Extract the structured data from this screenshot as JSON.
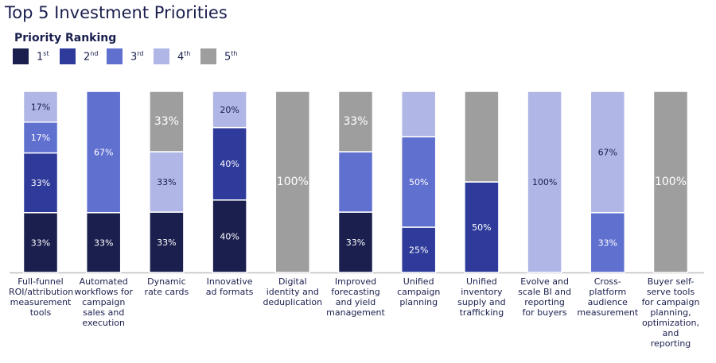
{
  "chart_data": {
    "type": "bar",
    "stacked": true,
    "title": "Top 5 Investment Priorities",
    "legend_title": "Priority Ranking",
    "legend_placement": "top-left",
    "ylim": [
      0,
      100
    ],
    "grid": false,
    "categories": [
      "Full-funnel ROI/attribution measurement tools",
      "Automated workflows for campaign sales and execution",
      "Dynamic rate cards",
      "Innovative ad formats",
      "Digital identity and deduplication",
      "Improved forecasting and yield management",
      "Unified campaign planning",
      "Unified inventory supply and trafficking",
      "Evolve and scale BI and reporting for buyers",
      "Cross-platform audience measurement",
      "Buyer self-serve tools for campaign planning, optimization, and reporting"
    ],
    "category_lines": [
      "Full-funnel\nROI/attribution\nmeasurement\ntools",
      "Automated\nworkflows for\ncampaign\nsales and\nexecution",
      "Dynamic\nrate cards",
      "Innovative\nad formats",
      "Digital\nidentity and\ndeduplication",
      "Improved\nforecasting\nand yield\nmanagement",
      "Unified\ncampaign\nplanning",
      "Unified\ninventory\nsupply and\ntrafficking",
      "Evolve and\nscale BI and\nreporting\nfor buyers",
      "Cross-platform\naudience\nmeasurement",
      "Buyer self-\nserve tools\nfor campaign\nplanning,\noptimization,\nand\nreporting"
    ],
    "series": [
      {
        "name": "1st",
        "base": "1",
        "suffix": "st",
        "color": "#1a1f4e",
        "label_color": "#ffffff",
        "values": [
          33,
          33,
          33,
          40,
          0,
          33,
          0,
          0,
          0,
          0,
          0
        ],
        "labels": [
          "33%",
          "33%",
          "33%",
          "40%",
          null,
          "33%",
          null,
          null,
          null,
          null,
          null
        ]
      },
      {
        "name": "2nd",
        "base": "2",
        "suffix": "nd",
        "color": "#2e3b9a",
        "label_color": "#ffffff",
        "values": [
          33,
          0,
          0,
          40,
          0,
          0,
          25,
          50,
          0,
          0,
          0
        ],
        "labels": [
          "33%",
          null,
          null,
          "40%",
          null,
          null,
          "25%",
          "50%",
          null,
          null,
          null
        ]
      },
      {
        "name": "3rd",
        "base": "3",
        "suffix": "rd",
        "color": "#6070cf",
        "label_color": "#ffffff",
        "values": [
          17,
          67,
          0,
          0,
          0,
          33,
          50,
          0,
          0,
          33,
          0
        ],
        "labels": [
          "17%",
          "67%",
          null,
          null,
          null,
          null,
          "50%",
          null,
          null,
          "33%",
          null
        ]
      },
      {
        "name": "4th",
        "base": "4",
        "suffix": "th",
        "color": "#b0b6e6",
        "label_color": "#1a1f4e",
        "values": [
          17,
          0,
          33,
          20,
          0,
          0,
          25,
          0,
          100,
          67,
          0
        ],
        "labels": [
          "17%",
          null,
          "33%",
          "20%",
          null,
          null,
          null,
          null,
          "100%",
          "67%",
          null
        ]
      },
      {
        "name": "5th",
        "base": "5",
        "suffix": "th",
        "color": "#9e9e9e",
        "label_color": "#ffffff",
        "values": [
          0,
          0,
          33,
          0,
          100,
          33,
          0,
          50,
          0,
          0,
          100
        ],
        "labels": [
          null,
          null,
          "33%",
          null,
          "100%",
          "33%",
          null,
          null,
          null,
          null,
          "100%"
        ]
      }
    ]
  }
}
